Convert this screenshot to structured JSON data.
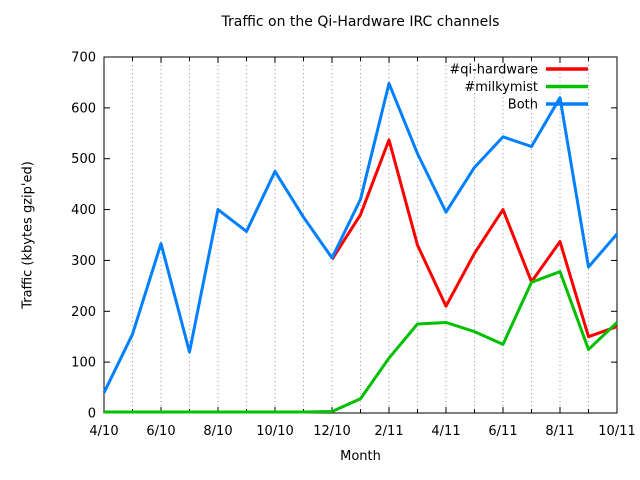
{
  "chart_data": {
    "type": "line",
    "title": "Traffic on the Qi-Hardware IRC channels",
    "xlabel": "Month",
    "ylabel": "Traffic (kbytes gzip'ed)",
    "ylim": [
      0,
      700
    ],
    "y_ticks": [
      0,
      100,
      200,
      300,
      400,
      500,
      600,
      700
    ],
    "x_tick_labels": [
      "4/10",
      "6/10",
      "8/10",
      "10/10",
      "12/10",
      "2/11",
      "4/11",
      "6/11",
      "8/11",
      "10/11"
    ],
    "categories": [
      "4/10",
      "5/10",
      "6/10",
      "7/10",
      "8/10",
      "9/10",
      "10/10",
      "11/10",
      "12/10",
      "1/11",
      "2/11",
      "3/11",
      "4/11",
      "5/11",
      "6/11",
      "7/11",
      "8/11",
      "9/11",
      "10/11"
    ],
    "series": [
      {
        "name": "#qi-hardware",
        "color": "#ff0000",
        "values": [
          null,
          null,
          null,
          null,
          null,
          null,
          null,
          null,
          302,
          390,
          537,
          330,
          210,
          314,
          400,
          258,
          337,
          150,
          170
        ]
      },
      {
        "name": "#milkymist",
        "color": "#00c000",
        "values": [
          2,
          2,
          2,
          2,
          2,
          2,
          2,
          2,
          3,
          28,
          108,
          175,
          178,
          160,
          135,
          257,
          278,
          125,
          178
        ]
      },
      {
        "name": "Both",
        "color": "#0080ff",
        "values": [
          40,
          155,
          333,
          120,
          400,
          357,
          475,
          385,
          305,
          420,
          648,
          510,
          395,
          483,
          543,
          524,
          620,
          287,
          352
        ]
      }
    ],
    "grid": "vertical-dotted-monthly",
    "grid_color": "#999999",
    "axis_color": "#000000",
    "legend_position": "top-right-inside"
  }
}
